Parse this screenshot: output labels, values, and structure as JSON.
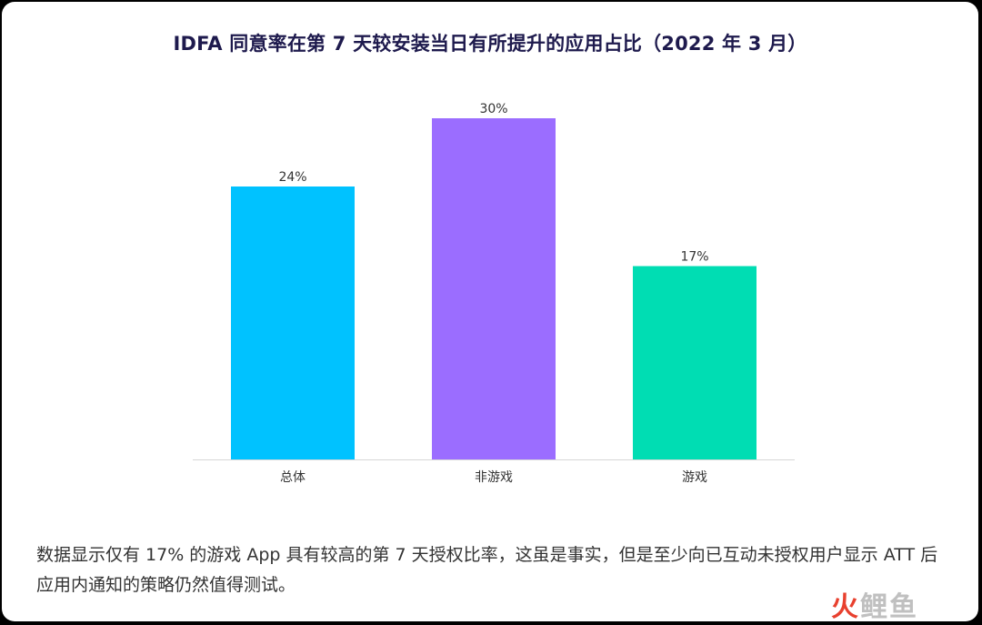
{
  "title": "IDFA 同意率在第 7 天较安装当日有所提升的应用占比（2022 年 3 月）",
  "chart_data": {
    "type": "bar",
    "title": "IDFA 同意率在第 7 天较安装当日有所提升的应用占比（2022 年 3 月）",
    "categories": [
      "总体",
      "非游戏",
      "游戏"
    ],
    "values": [
      24,
      30,
      17
    ],
    "value_labels": [
      "24%",
      "30%",
      "17%"
    ],
    "colors": [
      "#00c2ff",
      "#9b6dff",
      "#00ddb3"
    ],
    "ylim": [
      0,
      30
    ],
    "grid": false,
    "legend": "none"
  },
  "caption": "数据显示仅有 17% 的游戏 App 具有较高的第 7 天授权比率，这虽是事实，但是至少向已互动未授权用户显示 ATT 后应用内通知的策略仍然值得测试。",
  "watermark": {
    "part1": "火",
    "part2": "鲤鱼"
  }
}
